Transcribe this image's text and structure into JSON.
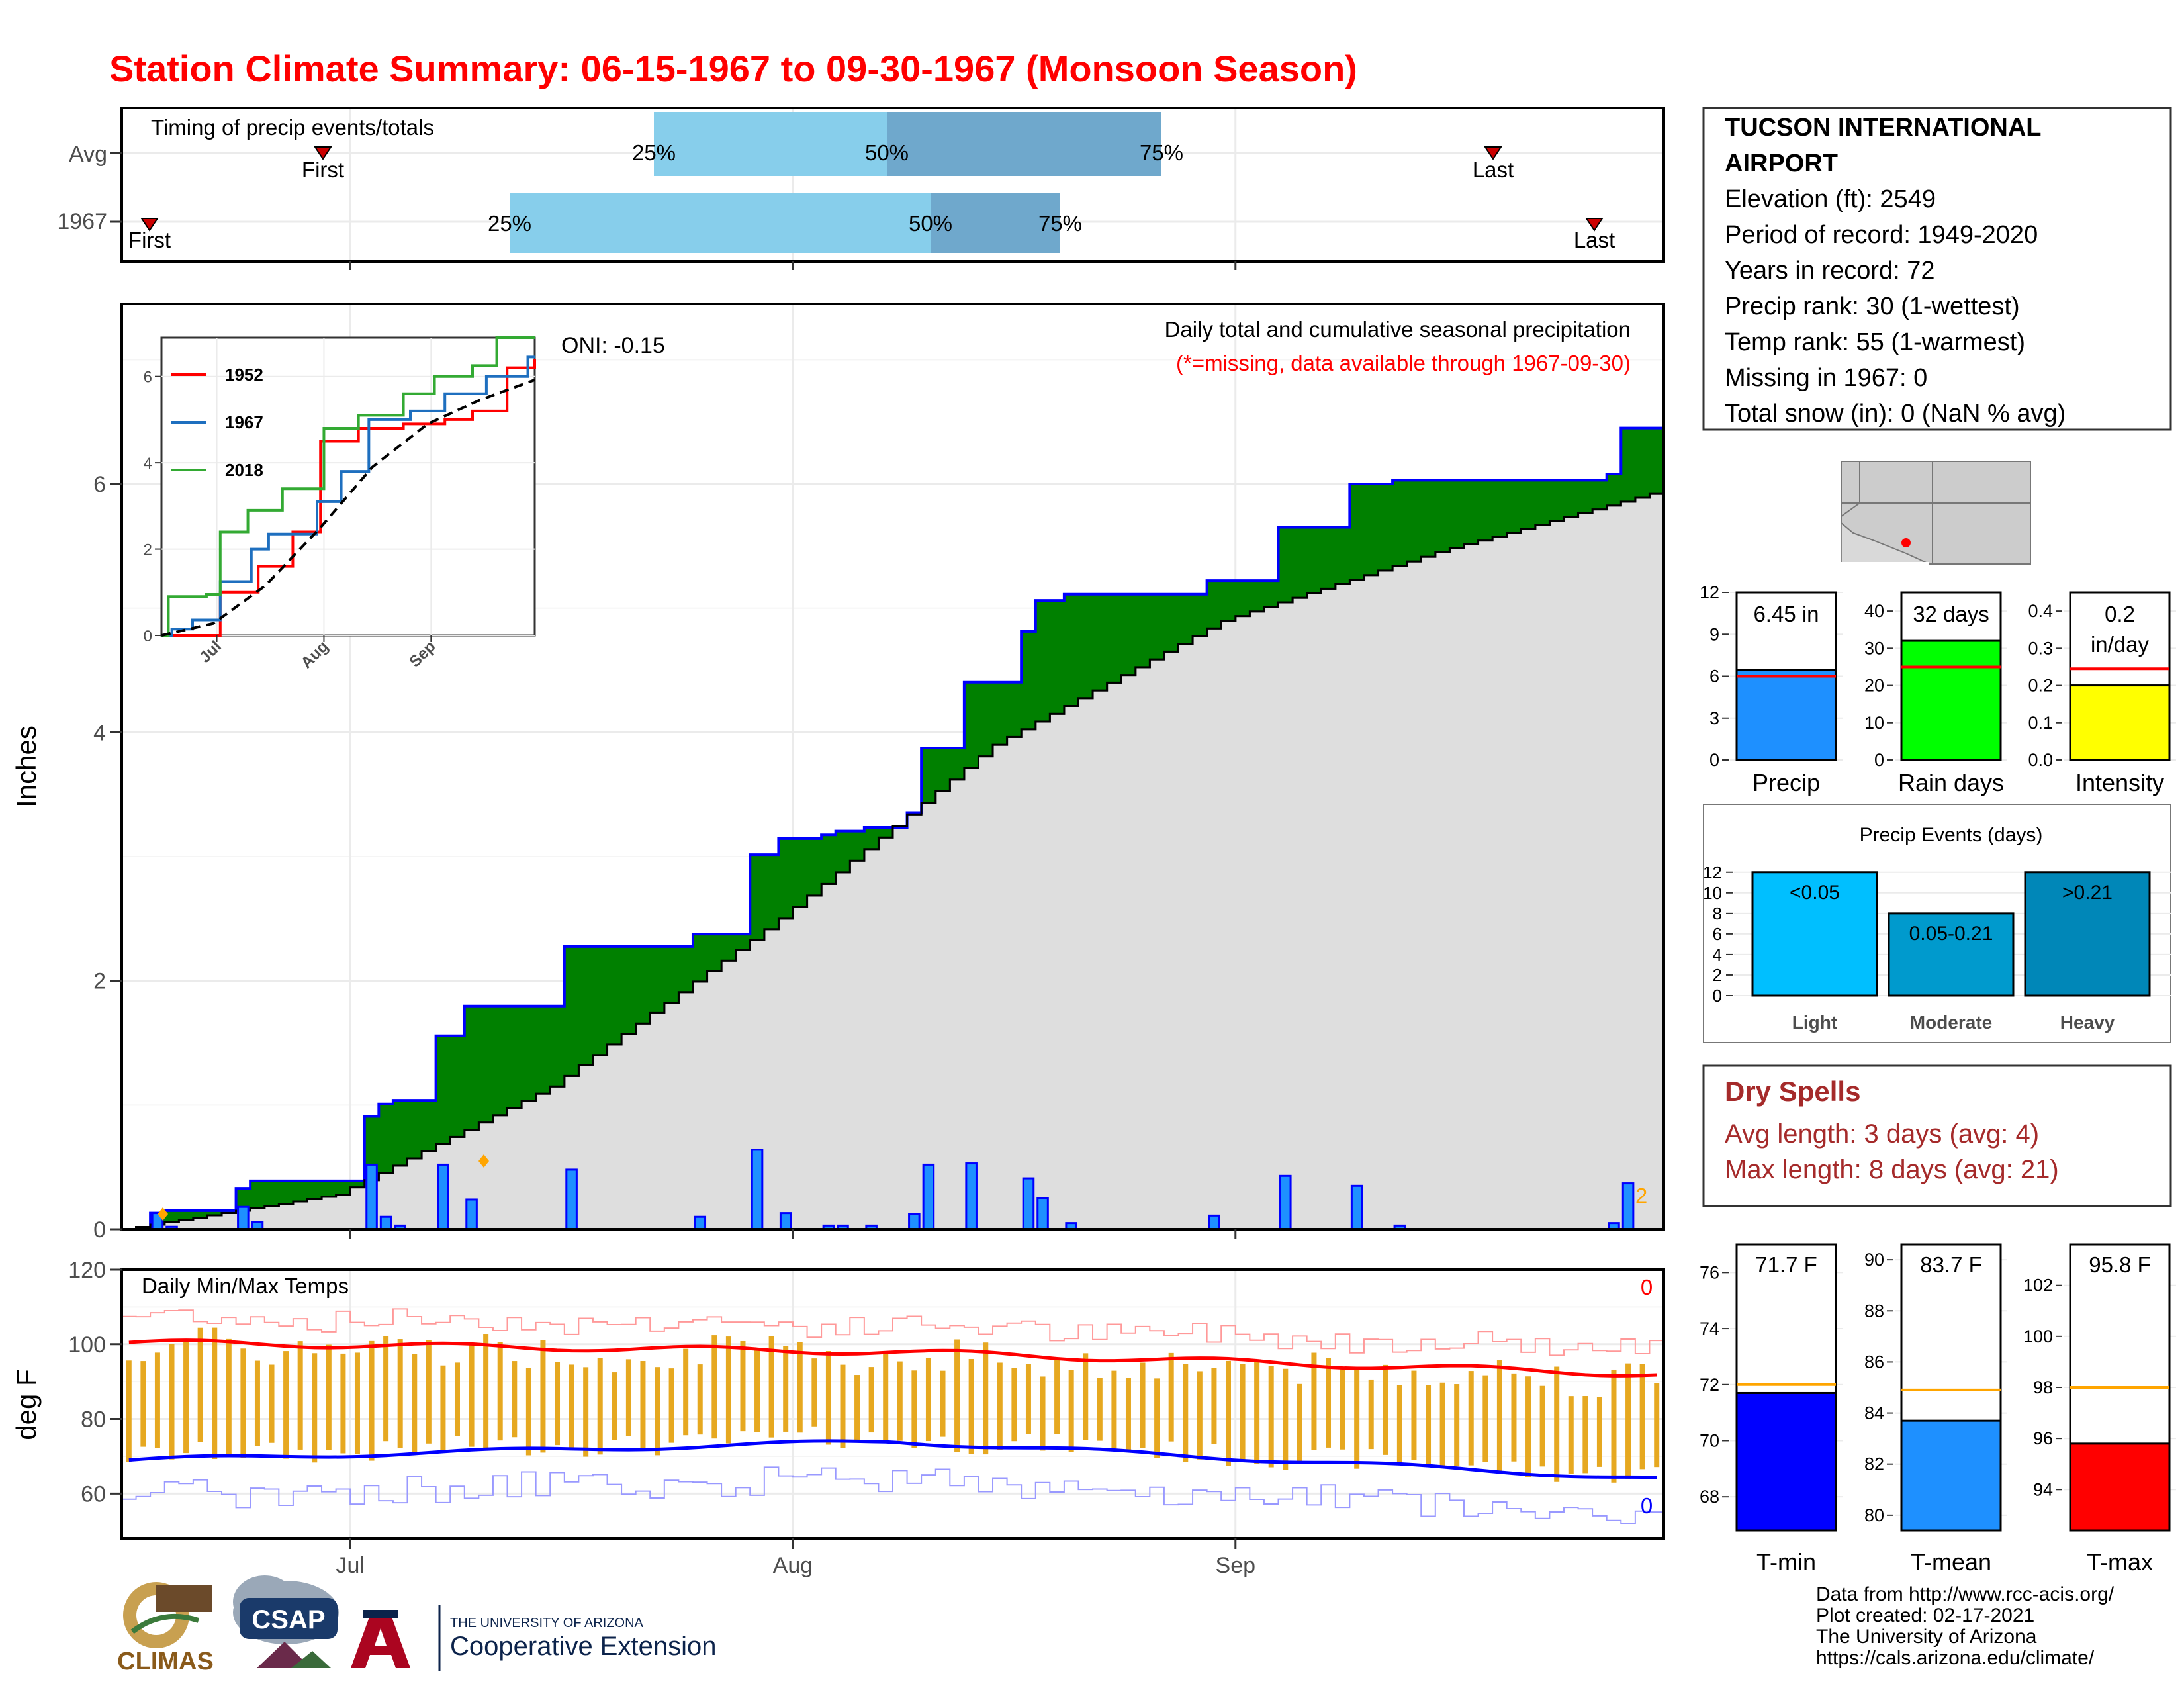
{
  "title": "Station Climate Summary: 06-15-1967 to 09-30-1967 (Monsoon Season)",
  "colors": {
    "title": "#ff0000",
    "pct_light": "#87ceeb",
    "pct_dark": "#6fa8cc",
    "cum_area": "#008000",
    "avg_area": "#dedede",
    "bars": "#1e90ff",
    "bar_edge": "#0000ff",
    "tmax": "#ff0000",
    "tmin": "#0000ff",
    "temp_bar": "#e6a820",
    "dry_spell": "#a52a2a",
    "light": "#00bfff",
    "moderate": "#009acd",
    "heavy": "#0087b8"
  },
  "timing": {
    "label": "Timing of precip events/totals",
    "row_labels": [
      "Avg",
      "1967"
    ],
    "avg": {
      "first": "Jun 22",
      "p25": "Jul 22",
      "p50": "Aug 3",
      "p75": "Aug 21",
      "last": "Sep 27"
    },
    "y1967": {
      "first": "Jun 16",
      "p25": "Jul 11",
      "p50": "Aug 6",
      "p75": "Aug 14",
      "last": "Sep 29"
    },
    "first_label": "First",
    "last_label": "Last",
    "p25_label": "25%",
    "p50_label": "50%",
    "p75_label": "75%"
  },
  "precip_panel": {
    "title": "Daily total and cumulative seasonal precipitation",
    "subtitle": "(*=missing, data available through 1967-09-30)",
    "oni": "ONI: -0.15",
    "ylabel": "Inches",
    "corner_count": "2"
  },
  "temp_panel": {
    "title": "Daily Min/Max Temps",
    "ylabel": "deg F",
    "max_count": "0",
    "min_count": "0"
  },
  "x_axis": {
    "ticks": [
      "Jul",
      "Aug",
      "Sep"
    ]
  },
  "station": {
    "name_line1": "TUCSON INTERNATIONAL",
    "name_line2": "AIRPORT",
    "elevation": "Elevation (ft): 2549",
    "period": "Period of record: 1949-2020",
    "years": "Years in record: 72",
    "precip_rank": "Precip rank: 30 (1-wettest)",
    "temp_rank": "Temp rank: 55 (1-warmest)",
    "missing": "Missing in 1967: 0",
    "snow": "Total snow (in): 0 (NaN % avg)"
  },
  "mini_bars": {
    "precip": {
      "label": "Precip",
      "value_text": "6.45 in",
      "value": 6.45,
      "avg": 6.0,
      "ticks": [
        "0",
        "3",
        "6",
        "9",
        "12"
      ]
    },
    "raindays": {
      "label": "Rain days",
      "value_text": "32 days",
      "value": 32,
      "avg": 25,
      "ticks": [
        "0",
        "10",
        "20",
        "30",
        "40"
      ]
    },
    "intensity": {
      "label": "Intensity",
      "value_text": "0.2",
      "value_text2": "in/day",
      "value": 0.2,
      "avg": 0.245,
      "ticks": [
        "0.0",
        "0.1",
        "0.2",
        "0.3",
        "0.4"
      ]
    }
  },
  "events": {
    "title": "Precip Events (days)",
    "ticks": [
      "0",
      "2",
      "4",
      "6",
      "8",
      "10",
      "12"
    ],
    "categories": [
      {
        "label": "Light",
        "text": "<0.05",
        "value": 12
      },
      {
        "label": "Moderate",
        "text": "0.05-0.21",
        "value": 8
      },
      {
        "label": "Heavy",
        "text": ">0.21",
        "value": 12
      }
    ]
  },
  "dry_spells": {
    "title": "Dry Spells",
    "avg": "Avg length: 3 days (avg: 4)",
    "max": "Max length: 8 days (avg: 21)"
  },
  "temp_bars": {
    "tmin": {
      "label": "T-min",
      "value_text": "71.7 F",
      "value": 71.7,
      "avg": 72.0,
      "ticks": [
        "68",
        "70",
        "72",
        "74",
        "76"
      ]
    },
    "tmean": {
      "label": "T-mean",
      "value_text": "83.7 F",
      "value": 83.7,
      "avg": 84.9,
      "ticks": [
        "80",
        "82",
        "84",
        "86",
        "88",
        "90"
      ]
    },
    "tmax": {
      "label": "T-max",
      "value_text": "95.8 F",
      "value": 95.8,
      "avg": 98.0,
      "ticks": [
        "94",
        "96",
        "98",
        "100",
        "102"
      ]
    }
  },
  "footer": {
    "line1": "Data from http://www.rcc-acis.org/",
    "line2": "Plot created: 02-17-2021",
    "line3": "The University of Arizona",
    "line4": "https://cals.arizona.edu/climate/",
    "climas": "CLIMAS",
    "csap": "CSAP",
    "ua_small": "THE UNIVERSITY OF ARIZONA",
    "ua_big": "Cooperative Extension"
  },
  "chart_data": [
    {
      "type": "area",
      "title": "Daily total and cumulative seasonal precipitation",
      "ylabel": "Inches",
      "ylim": [
        0,
        7
      ],
      "x_start": "1967-06-15",
      "x_end": "1967-09-30",
      "daily_precip": [
        {
          "date": "1967-06-17",
          "value": 0.13
        },
        {
          "date": "1967-06-18",
          "value": 0.02
        },
        {
          "date": "1967-06-23",
          "value": 0.18
        },
        {
          "date": "1967-06-24",
          "value": 0.06
        },
        {
          "date": "1967-07-02",
          "value": 0.52
        },
        {
          "date": "1967-07-03",
          "value": 0.1
        },
        {
          "date": "1967-07-04",
          "value": 0.03
        },
        {
          "date": "1967-07-07",
          "value": 0.52
        },
        {
          "date": "1967-07-09",
          "value": 0.24
        },
        {
          "date": "1967-07-16",
          "value": 0.48
        },
        {
          "date": "1967-07-25",
          "value": 0.1
        },
        {
          "date": "1967-07-29",
          "value": 0.64
        },
        {
          "date": "1967-07-31",
          "value": 0.13
        },
        {
          "date": "1967-08-03",
          "value": 0.03
        },
        {
          "date": "1967-08-04",
          "value": 0.03
        },
        {
          "date": "1967-08-06",
          "value": 0.03
        },
        {
          "date": "1967-08-09",
          "value": 0.12
        },
        {
          "date": "1967-08-10",
          "value": 0.52
        },
        {
          "date": "1967-08-13",
          "value": 0.53
        },
        {
          "date": "1967-08-17",
          "value": 0.41
        },
        {
          "date": "1967-08-18",
          "value": 0.25
        },
        {
          "date": "1967-08-20",
          "value": 0.05
        },
        {
          "date": "1967-08-30",
          "value": 0.11
        },
        {
          "date": "1967-09-04",
          "value": 0.43
        },
        {
          "date": "1967-09-09",
          "value": 0.35
        },
        {
          "date": "1967-09-12",
          "value": 0.03
        },
        {
          "date": "1967-09-27",
          "value": 0.05
        },
        {
          "date": "1967-09-28",
          "value": 0.37
        }
      ],
      "cumulative_1967_total": 6.45,
      "average_cumulative": [
        {
          "date": "1967-06-15",
          "value": 0.0
        },
        {
          "date": "1967-06-30",
          "value": 0.28
        },
        {
          "date": "1967-07-15",
          "value": 1.15
        },
        {
          "date": "1967-07-31",
          "value": 2.5
        },
        {
          "date": "1967-08-15",
          "value": 3.9
        },
        {
          "date": "1967-08-31",
          "value": 4.9
        },
        {
          "date": "1967-09-15",
          "value": 5.45
        },
        {
          "date": "1967-09-30",
          "value": 5.92
        }
      ]
    },
    {
      "type": "line",
      "title": "",
      "ylim": [
        0,
        6.9
      ],
      "yticks": [
        "0",
        "2",
        "4",
        "6"
      ],
      "xticks": [
        "Jul",
        "Aug",
        "Sep"
      ],
      "series": [
        {
          "name": "1952",
          "color": "#ff0000",
          "points": [
            [
              0,
              0
            ],
            [
              14,
              0
            ],
            [
              17,
              1.0
            ],
            [
              28,
              1.6
            ],
            [
              38,
              2.4
            ],
            [
              46,
              4.5
            ],
            [
              57,
              4.8
            ],
            [
              70,
              4.9
            ],
            [
              82,
              5.0
            ],
            [
              90,
              5.2
            ],
            [
              100,
              6.2
            ],
            [
              108,
              6.4
            ]
          ]
        },
        {
          "name": "1967",
          "color": "#1e6fbf",
          "points": [
            [
              0,
              0
            ],
            [
              3,
              0.15
            ],
            [
              9,
              0.36
            ],
            [
              17,
              1.25
            ],
            [
              26,
              2.0
            ],
            [
              31,
              2.35
            ],
            [
              45,
              3.1
            ],
            [
              52,
              3.8
            ],
            [
              60,
              5.0
            ],
            [
              72,
              5.2
            ],
            [
              82,
              5.6
            ],
            [
              94,
              6.0
            ],
            [
              106,
              6.45
            ],
            [
              108,
              6.45
            ]
          ]
        },
        {
          "name": "2018",
          "color": "#33aa33",
          "points": [
            [
              0,
              0
            ],
            [
              2,
              0.9
            ],
            [
              13,
              0.95
            ],
            [
              17,
              2.4
            ],
            [
              25,
              2.9
            ],
            [
              35,
              3.4
            ],
            [
              47,
              4.8
            ],
            [
              57,
              5.1
            ],
            [
              70,
              5.6
            ],
            [
              79,
              6.0
            ],
            [
              90,
              6.25
            ],
            [
              97,
              6.9
            ],
            [
              108,
              6.9
            ]
          ]
        },
        {
          "name": "Avg",
          "color": "#000000",
          "points": [
            [
              0,
              0
            ],
            [
              15,
              0.28
            ],
            [
              30,
              1.15
            ],
            [
              46,
              2.5
            ],
            [
              61,
              3.9
            ],
            [
              77,
              4.9
            ],
            [
              92,
              5.45
            ],
            [
              108,
              5.92
            ]
          ]
        }
      ]
    },
    {
      "type": "bar",
      "title": "Daily Min/Max Temps",
      "ylabel": "deg F",
      "ylim": [
        48,
        120
      ],
      "yticks": [
        "60",
        "80",
        "100",
        "120"
      ],
      "xticks": [
        "Jul",
        "Aug",
        "Sep"
      ],
      "series": [
        {
          "name": "Avg max",
          "start": 100.5,
          "mid": 98,
          "end": 92
        },
        {
          "name": "Avg min",
          "start": 69,
          "mid": 74,
          "end": 64
        },
        {
          "name": "Record high",
          "range": [
            101,
            116
          ]
        },
        {
          "name": "Record low",
          "range": [
            52,
            72
          ]
        }
      ]
    }
  ]
}
